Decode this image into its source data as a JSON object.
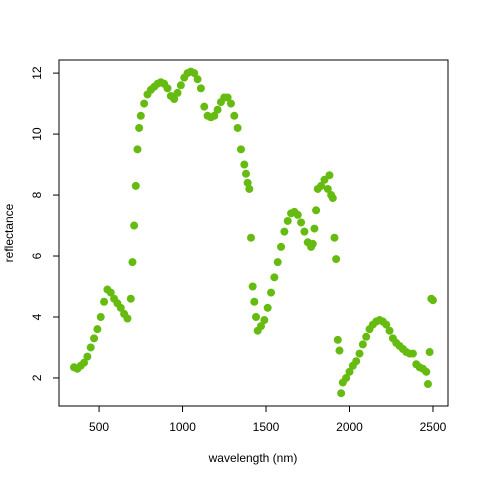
{
  "chart_data": {
    "type": "scatter",
    "xlabel": "wavelength (nm)",
    "ylabel": "reflectance",
    "color": "#66bb11",
    "x": [
      350,
      370,
      390,
      410,
      430,
      450,
      470,
      490,
      510,
      530,
      550,
      570,
      590,
      610,
      630,
      650,
      670,
      690,
      700,
      710,
      720,
      730,
      740,
      750,
      770,
      790,
      810,
      830,
      850,
      870,
      890,
      910,
      930,
      950,
      970,
      990,
      1010,
      1030,
      1050,
      1070,
      1090,
      1110,
      1130,
      1150,
      1170,
      1190,
      1210,
      1230,
      1250,
      1270,
      1290,
      1310,
      1330,
      1350,
      1370,
      1380,
      1390,
      1400,
      1410,
      1420,
      1430,
      1440,
      1450,
      1470,
      1490,
      1510,
      1530,
      1550,
      1570,
      1590,
      1610,
      1630,
      1650,
      1670,
      1690,
      1710,
      1730,
      1750,
      1770,
      1780,
      1790,
      1800,
      1810,
      1830,
      1850,
      1870,
      1880,
      1890,
      1900,
      1910,
      1920,
      1930,
      1940,
      1950,
      1960,
      1980,
      2000,
      2020,
      2040,
      2060,
      2080,
      2100,
      2120,
      2140,
      2160,
      2180,
      2200,
      2220,
      2240,
      2260,
      2280,
      2300,
      2320,
      2340,
      2360,
      2380,
      2400,
      2420,
      2440,
      2460,
      2470,
      2480,
      2490,
      2500
    ],
    "values": [
      2.35,
      2.3,
      2.4,
      2.5,
      2.7,
      3.0,
      3.3,
      3.6,
      4.0,
      4.5,
      4.9,
      4.8,
      4.6,
      4.45,
      4.3,
      4.1,
      3.95,
      4.6,
      5.8,
      7.0,
      8.3,
      9.5,
      10.2,
      10.6,
      11.0,
      11.3,
      11.45,
      11.55,
      11.65,
      11.7,
      11.65,
      11.5,
      11.25,
      11.15,
      11.35,
      11.6,
      11.85,
      12.0,
      12.05,
      12.0,
      11.8,
      11.5,
      10.9,
      10.6,
      10.55,
      10.6,
      10.8,
      11.05,
      11.2,
      11.2,
      11.0,
      10.6,
      10.2,
      9.5,
      9.0,
      8.7,
      8.4,
      8.2,
      6.6,
      5.0,
      4.5,
      4.0,
      3.55,
      3.7,
      3.9,
      4.3,
      4.8,
      5.3,
      5.8,
      6.3,
      6.8,
      7.15,
      7.4,
      7.45,
      7.35,
      7.1,
      6.8,
      6.45,
      6.3,
      6.4,
      6.9,
      7.5,
      8.2,
      8.3,
      8.5,
      8.2,
      8.65,
      8.0,
      7.9,
      6.6,
      5.9,
      3.25,
      2.9,
      1.5,
      1.85,
      2.0,
      2.2,
      2.4,
      2.55,
      2.8,
      3.1,
      3.35,
      3.6,
      3.75,
      3.85,
      3.9,
      3.85,
      3.75,
      3.55,
      3.3,
      3.15,
      3.05,
      2.95,
      2.85,
      2.8,
      2.8,
      2.45,
      2.35,
      2.3,
      2.2,
      1.8,
      2.85,
      4.6,
      4.55
    ],
    "xlim": [
      260,
      2590
    ],
    "xticks": [
      500,
      1000,
      1500,
      2000,
      2500
    ],
    "ylim": [
      1.08,
      12.43
    ],
    "yticks": [
      2,
      4,
      6,
      8,
      10,
      12
    ]
  }
}
